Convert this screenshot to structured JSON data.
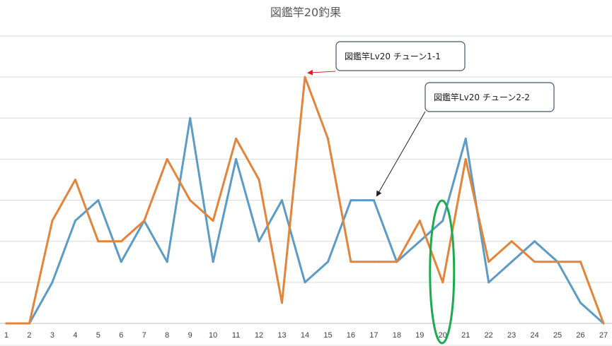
{
  "chart_data": {
    "type": "line",
    "title": "図鑑竿20釣果",
    "xlabel": "",
    "ylabel": "",
    "x": [
      1,
      2,
      3,
      4,
      5,
      6,
      7,
      8,
      9,
      10,
      11,
      12,
      13,
      14,
      15,
      16,
      17,
      18,
      19,
      20,
      21,
      22,
      23,
      24,
      25,
      26,
      27
    ],
    "ylim": [
      0,
      14
    ],
    "y_ticks_visible": false,
    "grid": "horizontal",
    "legend": "none",
    "series": [
      {
        "color": "#5b9bc6",
        "values": [
          0,
          0,
          2,
          5,
          6,
          3,
          5,
          3,
          10,
          3,
          8,
          4,
          6,
          2,
          3,
          6,
          6,
          3,
          4,
          5,
          9,
          2,
          3,
          4,
          3,
          1,
          0
        ]
      },
      {
        "color": "#e3843a",
        "values": [
          0,
          0,
          5,
          7,
          4,
          4,
          5,
          8,
          6,
          5,
          9,
          7,
          1,
          12,
          9,
          3,
          3,
          3,
          5,
          2,
          8,
          3,
          4,
          3,
          3,
          3,
          0
        ]
      }
    ],
    "annotations": [
      {
        "text": "図鑑竿Lv20 チューン1-1",
        "arrow_color": "#e02020",
        "target_x": 14,
        "target_series": 1
      },
      {
        "text": "図鑑竿Lv20 チューン2-2",
        "arrow_color": "#222222",
        "target_x": 17,
        "target_series": 0
      }
    ],
    "highlight": {
      "x": 20,
      "shape": "ellipse",
      "color": "#1aab50"
    }
  }
}
